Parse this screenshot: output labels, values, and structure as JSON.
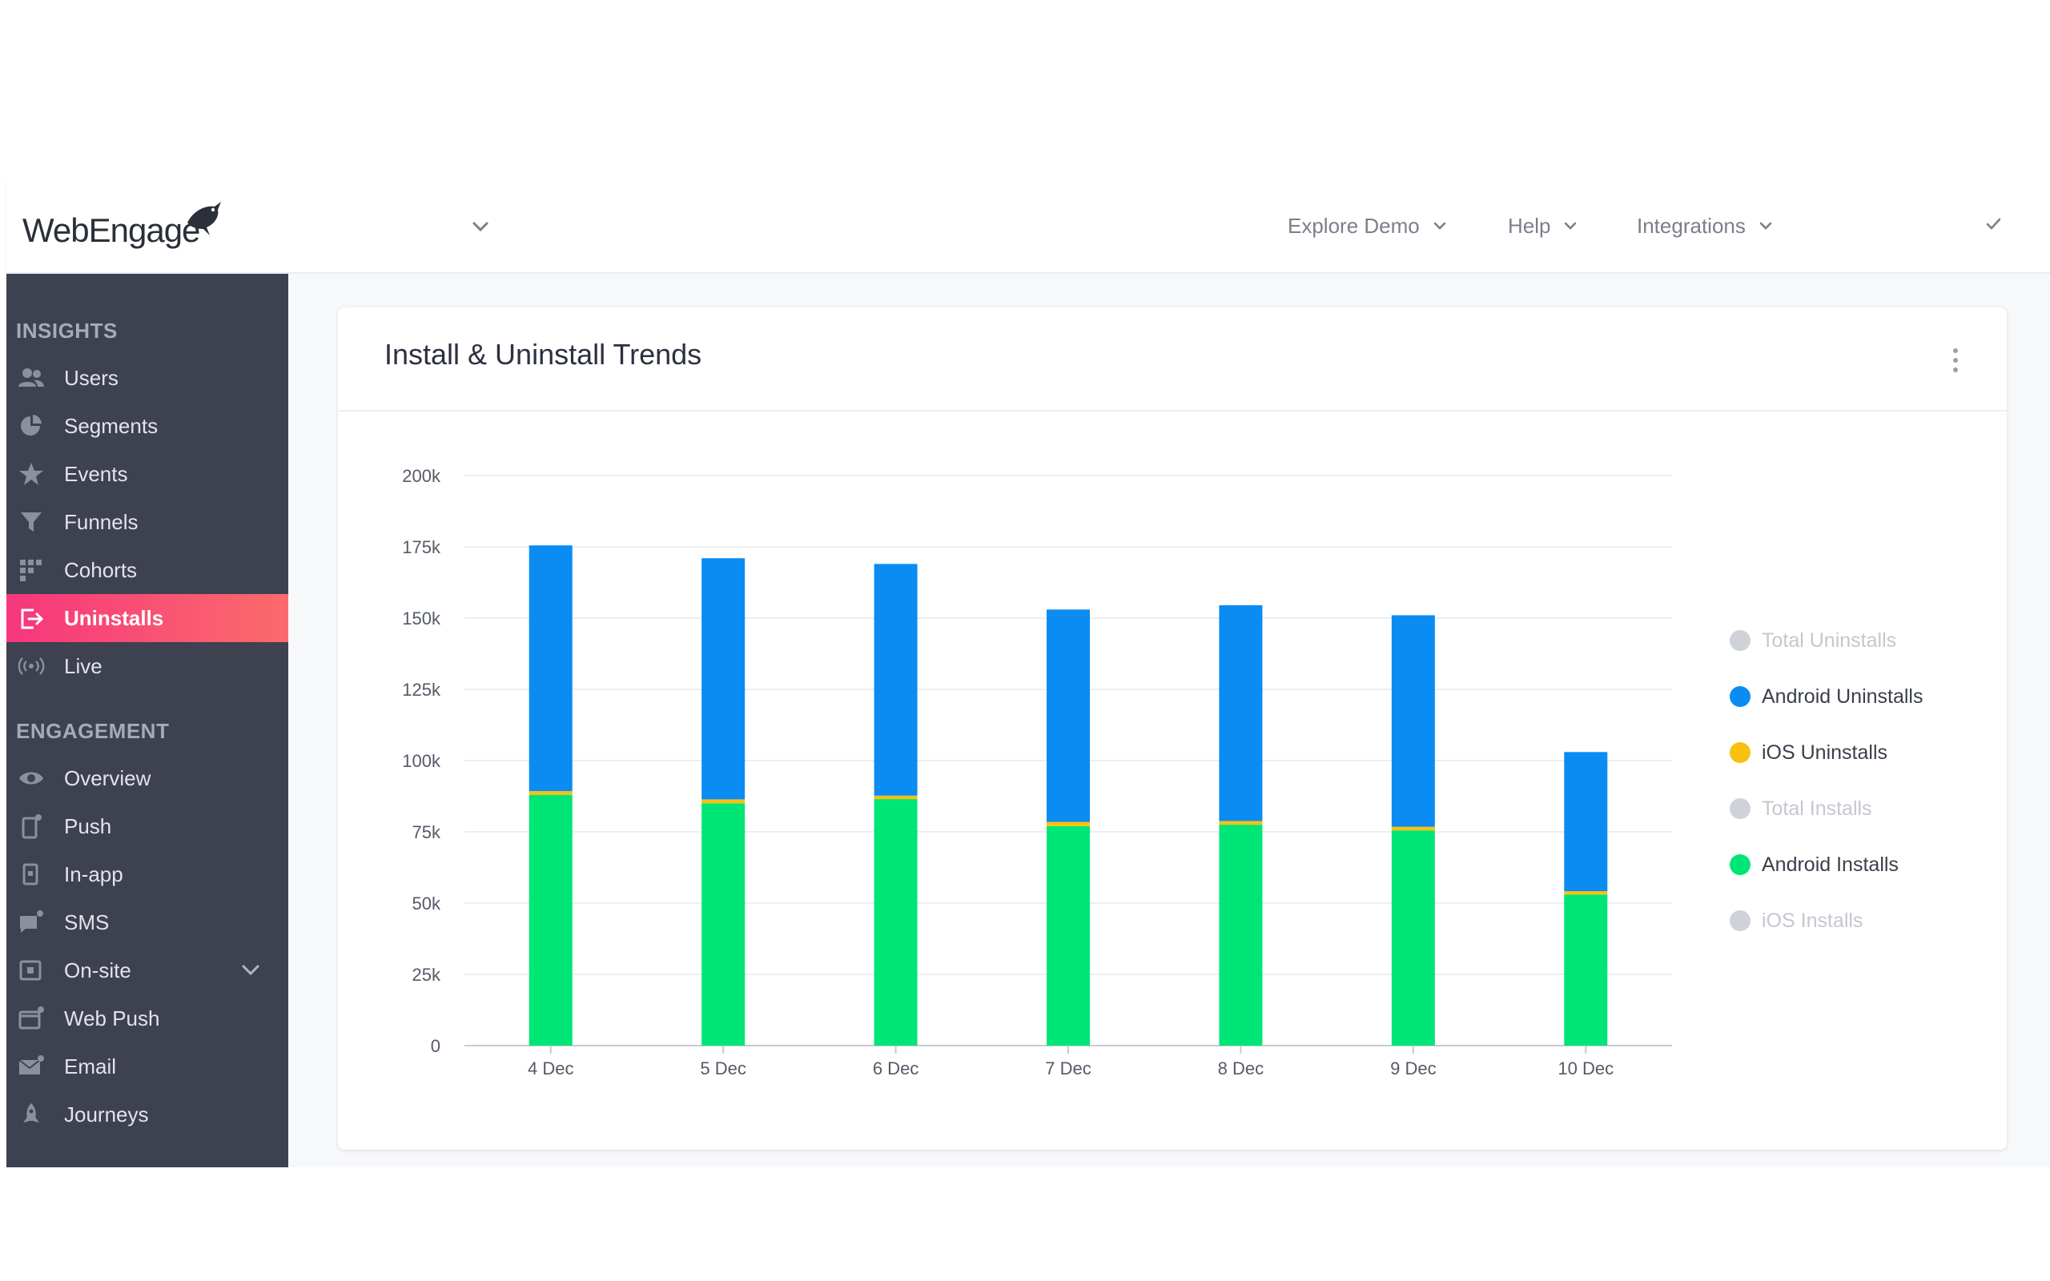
{
  "header": {
    "logo_text": "WebEngage",
    "nav": [
      {
        "label": "Explore Demo"
      },
      {
        "label": "Help"
      },
      {
        "label": "Integrations"
      }
    ]
  },
  "sidebar": {
    "sections": [
      {
        "title": "INSIGHTS",
        "items": [
          {
            "label": "Users",
            "icon": "users-icon"
          },
          {
            "label": "Segments",
            "icon": "pie-chart-icon"
          },
          {
            "label": "Events",
            "icon": "star-icon"
          },
          {
            "label": "Funnels",
            "icon": "funnel-icon"
          },
          {
            "label": "Cohorts",
            "icon": "grid-icon"
          },
          {
            "label": "Uninstalls",
            "icon": "exit-icon",
            "active": true
          },
          {
            "label": "Live",
            "icon": "broadcast-icon"
          }
        ]
      },
      {
        "title": "ENGAGEMENT",
        "items": [
          {
            "label": "Overview",
            "icon": "eye-icon"
          },
          {
            "label": "Push",
            "icon": "mobile-push-icon"
          },
          {
            "label": "In-app",
            "icon": "in-app-icon"
          },
          {
            "label": "SMS",
            "icon": "sms-icon"
          },
          {
            "label": "On-site",
            "icon": "on-site-icon",
            "expandable": true
          },
          {
            "label": "Web Push",
            "icon": "web-push-icon"
          },
          {
            "label": "Email",
            "icon": "email-icon"
          },
          {
            "label": "Journeys",
            "icon": "rocket-icon"
          }
        ]
      }
    ]
  },
  "colors": {
    "android_uninstalls": "#0a8cf3",
    "ios_uninstalls": "#f8c10d",
    "android_installs": "#00e676",
    "disabled": "#cfd2d8",
    "active_gradient_start": "#f6367d",
    "active_gradient_end": "#fb6b6b"
  },
  "card": {
    "title": "Install & Uninstall Trends"
  },
  "chart_data": {
    "type": "bar",
    "stacked": true,
    "categories": [
      "4 Dec",
      "5 Dec",
      "6 Dec",
      "7 Dec",
      "8 Dec",
      "9 Dec",
      "10 Dec"
    ],
    "series": [
      {
        "name": "Android Installs",
        "values": [
          88000,
          85000,
          86500,
          77000,
          77500,
          75500,
          53000
        ],
        "color": "#00e676"
      },
      {
        "name": "iOS Uninstalls",
        "values": [
          1300,
          1400,
          1200,
          1500,
          1300,
          1300,
          1200
        ],
        "color": "#f8c10d"
      },
      {
        "name": "Android Uninstalls",
        "values": [
          86200,
          84600,
          81300,
          74500,
          75700,
          74200,
          48800
        ],
        "color": "#0a8cf3"
      }
    ],
    "ylim": [
      0,
      200000
    ],
    "yticks": [
      "0",
      "25k",
      "50k",
      "75k",
      "100k",
      "125k",
      "150k",
      "175k",
      "200k"
    ],
    "grid": true,
    "legend": {
      "placement": "right",
      "entries": [
        {
          "label": "Total Uninstalls",
          "color": "#cfd2d8",
          "enabled": false
        },
        {
          "label": "Android Uninstalls",
          "color": "#0a8cf3",
          "enabled": true
        },
        {
          "label": "iOS Uninstalls",
          "color": "#f8c10d",
          "enabled": true
        },
        {
          "label": "Total Installs",
          "color": "#cfd2d8",
          "enabled": false
        },
        {
          "label": "Android Installs",
          "color": "#00e676",
          "enabled": true
        },
        {
          "label": "iOS Installs",
          "color": "#cfd2d8",
          "enabled": false
        }
      ]
    }
  }
}
